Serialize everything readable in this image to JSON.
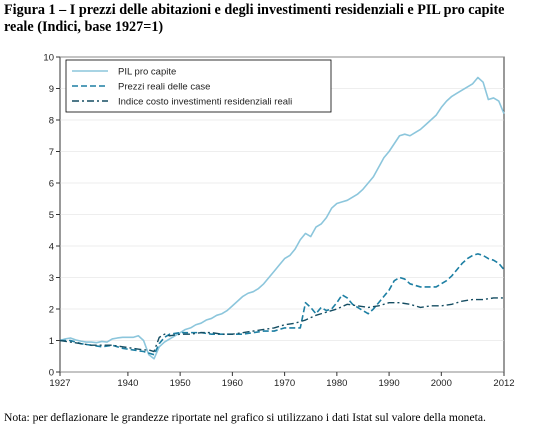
{
  "title": "Figura 1 – I prezzi delle abitazioni e degli investimenti residenziali e PIL pro capite reale (Indici, base 1927=1)",
  "note": "Nota: per deflazionare le grandezze riportate nel grafico si utilizzano i dati Istat sul valore della moneta.",
  "colors": {
    "pil": "#8cc6dc",
    "prezzi": "#1d7fa3",
    "costo": "#154d62",
    "axis": "#333333",
    "grid": "#dddddd"
  },
  "chart_data": {
    "type": "line",
    "xlim": [
      1927,
      2012
    ],
    "ylim": [
      0,
      10
    ],
    "xticks": [
      1927,
      1940,
      1950,
      1960,
      1970,
      1980,
      1990,
      2000,
      2012
    ],
    "yticks": [
      0,
      1,
      2,
      3,
      4,
      5,
      6,
      7,
      8,
      9,
      10
    ],
    "grid": true,
    "legend_position": "top-left",
    "series": [
      {
        "name": "PIL pro capite",
        "style": "solid",
        "x": [
          1927,
          1928,
          1929,
          1930,
          1931,
          1932,
          1933,
          1934,
          1935,
          1936,
          1937,
          1938,
          1939,
          1940,
          1941,
          1942,
          1943,
          1944,
          1945,
          1946,
          1947,
          1948,
          1949,
          1950,
          1951,
          1952,
          1953,
          1954,
          1955,
          1956,
          1957,
          1958,
          1959,
          1960,
          1961,
          1962,
          1963,
          1964,
          1965,
          1966,
          1967,
          1968,
          1969,
          1970,
          1971,
          1972,
          1973,
          1974,
          1975,
          1976,
          1977,
          1978,
          1979,
          1980,
          1981,
          1982,
          1983,
          1984,
          1985,
          1986,
          1987,
          1988,
          1989,
          1990,
          1991,
          1992,
          1993,
          1994,
          1995,
          1996,
          1997,
          1998,
          1999,
          2000,
          2001,
          2002,
          2003,
          2004,
          2005,
          2006,
          2007,
          2008,
          2009,
          2010,
          2011,
          2012
        ],
        "y": [
          1.0,
          1.05,
          1.08,
          1.02,
          0.98,
          0.95,
          0.95,
          0.93,
          0.97,
          0.95,
          1.05,
          1.08,
          1.1,
          1.1,
          1.1,
          1.15,
          1.0,
          0.55,
          0.42,
          0.8,
          0.95,
          1.05,
          1.15,
          1.25,
          1.35,
          1.4,
          1.5,
          1.55,
          1.65,
          1.7,
          1.8,
          1.85,
          1.95,
          2.1,
          2.25,
          2.4,
          2.5,
          2.55,
          2.65,
          2.8,
          3.0,
          3.2,
          3.4,
          3.6,
          3.7,
          3.9,
          4.2,
          4.4,
          4.3,
          4.6,
          4.7,
          4.9,
          5.2,
          5.35,
          5.4,
          5.45,
          5.55,
          5.65,
          5.8,
          6.0,
          6.2,
          6.5,
          6.8,
          7.0,
          7.25,
          7.5,
          7.55,
          7.5,
          7.6,
          7.7,
          7.85,
          8.0,
          8.15,
          8.4,
          8.6,
          8.75,
          8.85,
          8.95,
          9.05,
          9.15,
          9.35,
          9.2,
          8.65,
          8.7,
          8.6,
          8.2
        ]
      },
      {
        "name": "Prezzi reali delle case",
        "style": "dashed",
        "x": [
          1927,
          1929,
          1931,
          1933,
          1935,
          1937,
          1939,
          1941,
          1943,
          1944,
          1945,
          1946,
          1947,
          1948,
          1950,
          1952,
          1954,
          1956,
          1958,
          1960,
          1962,
          1964,
          1966,
          1968,
          1970,
          1971,
          1972,
          1973,
          1974,
          1975,
          1976,
          1977,
          1978,
          1979,
          1980,
          1981,
          1982,
          1983,
          1984,
          1985,
          1986,
          1987,
          1988,
          1989,
          1990,
          1991,
          1992,
          1993,
          1994,
          1995,
          1996,
          1997,
          1998,
          1999,
          2000,
          2001,
          2002,
          2003,
          2004,
          2005,
          2006,
          2007,
          2008,
          2009,
          2010,
          2011,
          2012
        ],
        "y": [
          1.0,
          1.0,
          0.9,
          0.85,
          0.8,
          0.85,
          0.75,
          0.7,
          0.65,
          0.6,
          0.55,
          0.9,
          1.1,
          1.2,
          1.25,
          1.25,
          1.25,
          1.2,
          1.2,
          1.2,
          1.2,
          1.25,
          1.3,
          1.3,
          1.4,
          1.4,
          1.4,
          1.4,
          2.2,
          2.05,
          1.85,
          2.05,
          1.95,
          2.0,
          2.2,
          2.45,
          2.35,
          2.15,
          2.05,
          1.95,
          1.85,
          2.0,
          2.2,
          2.4,
          2.6,
          2.9,
          3.0,
          2.95,
          2.8,
          2.75,
          2.7,
          2.7,
          2.7,
          2.7,
          2.8,
          2.9,
          3.05,
          3.25,
          3.45,
          3.6,
          3.7,
          3.75,
          3.7,
          3.6,
          3.55,
          3.45,
          3.25
        ]
      },
      {
        "name": "Indice costo investimenti residenziali reali",
        "style": "dashdot",
        "x": [
          1927,
          1929,
          1931,
          1933,
          1935,
          1937,
          1939,
          1941,
          1943,
          1944,
          1945,
          1946,
          1947,
          1948,
          1950,
          1952,
          1954,
          1956,
          1958,
          1960,
          1962,
          1964,
          1966,
          1968,
          1970,
          1972,
          1974,
          1976,
          1978,
          1980,
          1982,
          1984,
          1986,
          1988,
          1990,
          1992,
          1994,
          1996,
          1998,
          2000,
          2002,
          2004,
          2006,
          2008,
          2010,
          2012
        ],
        "y": [
          1.0,
          0.95,
          0.9,
          0.85,
          0.85,
          0.85,
          0.8,
          0.75,
          0.7,
          0.7,
          0.65,
          1.1,
          1.2,
          1.15,
          1.2,
          1.2,
          1.25,
          1.25,
          1.2,
          1.2,
          1.25,
          1.3,
          1.35,
          1.4,
          1.5,
          1.55,
          1.65,
          1.8,
          1.9,
          2.0,
          2.15,
          2.1,
          2.05,
          2.1,
          2.2,
          2.2,
          2.15,
          2.05,
          2.1,
          2.1,
          2.15,
          2.25,
          2.3,
          2.3,
          2.35,
          2.35
        ]
      }
    ]
  }
}
